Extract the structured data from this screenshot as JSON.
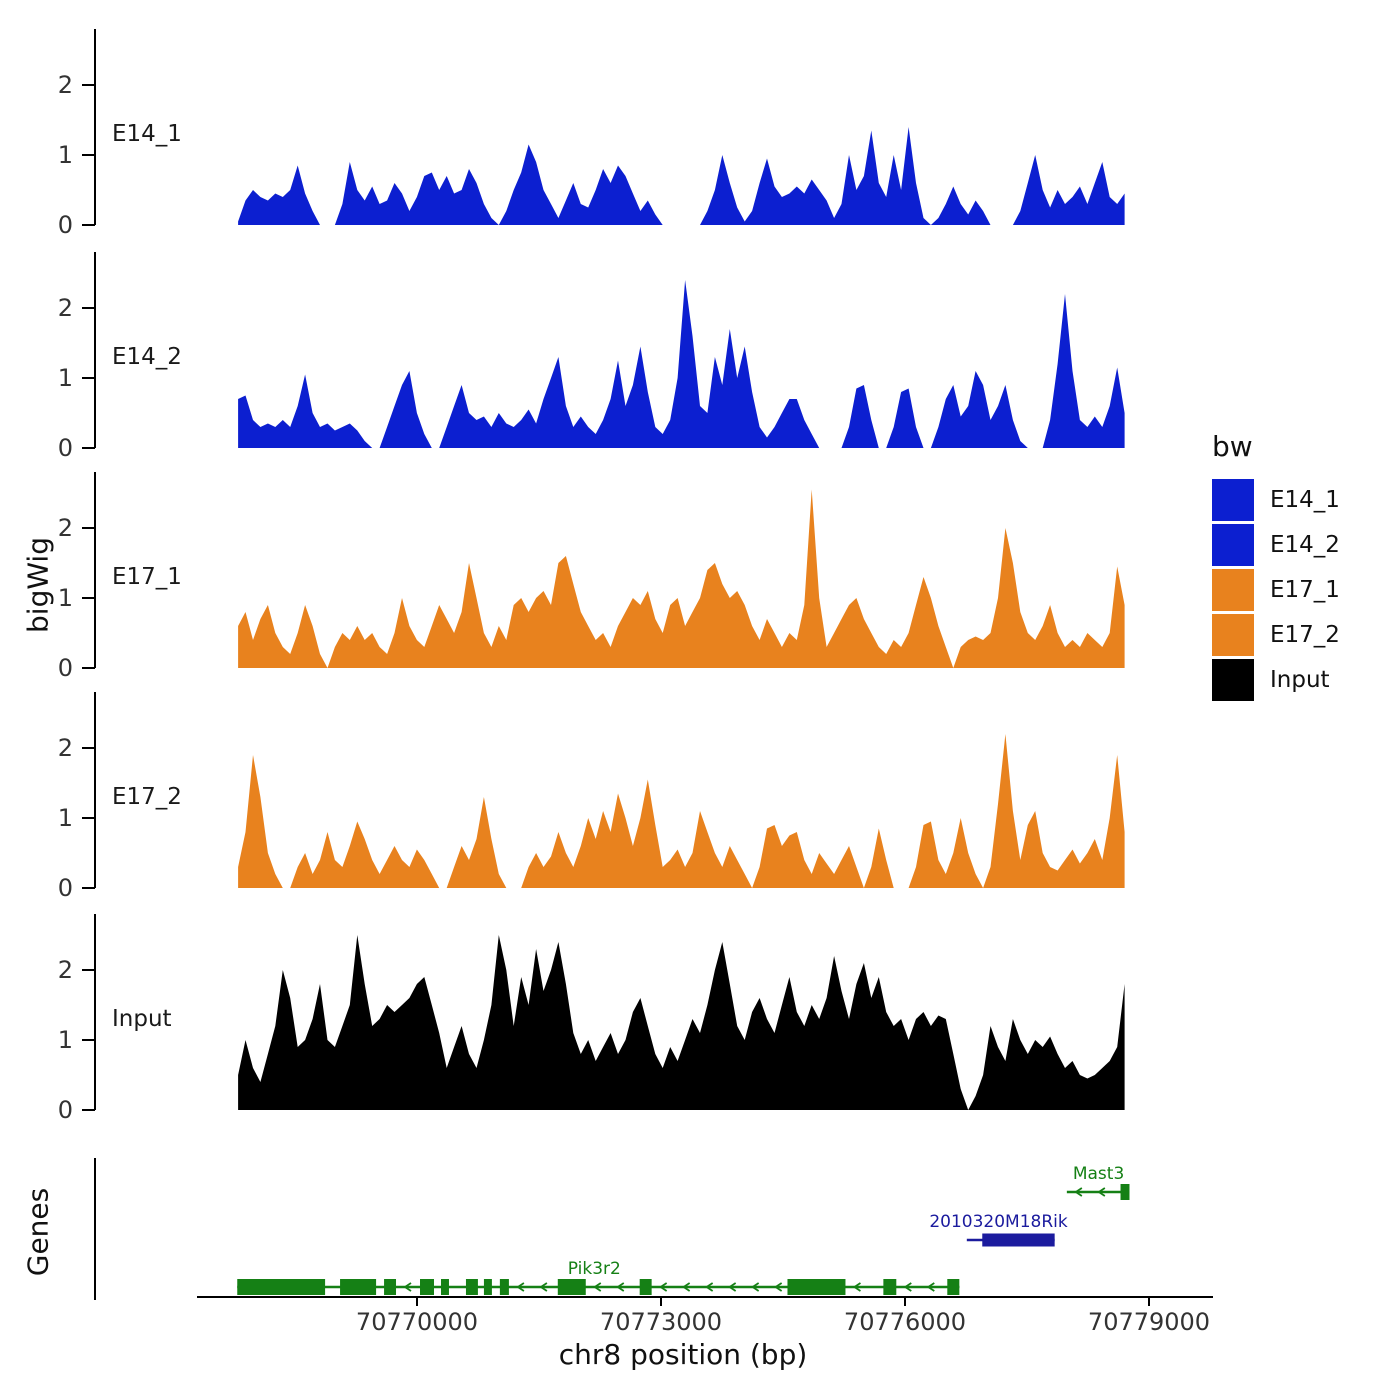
{
  "labels": {
    "y_axis": "bigWig",
    "genes_axis": "Genes",
    "x_axis": "chr8 position (bp)"
  },
  "legend": {
    "title": "bw",
    "items": [
      {
        "label": "E14_1",
        "color": "#0c1fd0"
      },
      {
        "label": "E14_2",
        "color": "#0c1fd0"
      },
      {
        "label": "E17_1",
        "color": "#e8821e"
      },
      {
        "label": "E17_2",
        "color": "#e8821e"
      },
      {
        "label": "Input",
        "color": "#000000"
      }
    ]
  },
  "colors": {
    "blue": "#0c1fd0",
    "orange": "#e8821e",
    "black": "#000000",
    "green": "#158015",
    "navy": "#1b1b9e"
  },
  "chart_data": {
    "type": "area",
    "title": "",
    "xlabel": "chr8 position (bp)",
    "ylabel": "bigWig",
    "chromosome": "chr8",
    "x_range_bp": [
      70767800,
      70778700
    ],
    "x_ticks": [
      70770000,
      70773000,
      70776000,
      70779000
    ],
    "x_tick_labels": [
      "70770000",
      "70773000",
      "70776000",
      "70779000"
    ],
    "y_ticks": [
      0,
      1,
      2
    ],
    "y_tick_labels": [
      "0",
      "1",
      "2"
    ],
    "legend_position": "right",
    "grid": false,
    "tracks": [
      {
        "name": "E14_1",
        "color": "#0c1fd0",
        "values": [
          0.05,
          0.35,
          0.5,
          0.4,
          0.35,
          0.45,
          0.4,
          0.5,
          0.85,
          0.45,
          0.2,
          0,
          0,
          0,
          0.3,
          0.9,
          0.5,
          0.35,
          0.55,
          0.3,
          0.35,
          0.6,
          0.45,
          0.2,
          0.4,
          0.7,
          0.75,
          0.5,
          0.7,
          0.45,
          0.5,
          0.8,
          0.6,
          0.3,
          0.1,
          0,
          0.2,
          0.5,
          0.75,
          1.15,
          0.9,
          0.5,
          0.3,
          0.1,
          0.35,
          0.6,
          0.3,
          0.25,
          0.5,
          0.8,
          0.6,
          0.85,
          0.7,
          0.45,
          0.2,
          0.35,
          0.15,
          0,
          0,
          0,
          0,
          0,
          0,
          0.2,
          0.5,
          1.0,
          0.6,
          0.25,
          0.05,
          0.2,
          0.6,
          0.95,
          0.55,
          0.4,
          0.45,
          0.55,
          0.45,
          0.65,
          0.5,
          0.35,
          0.1,
          0.3,
          1.0,
          0.5,
          0.7,
          1.35,
          0.6,
          0.4,
          1.0,
          0.5,
          1.4,
          0.6,
          0.1,
          0,
          0.1,
          0.3,
          0.55,
          0.3,
          0.15,
          0.35,
          0.2,
          0,
          0,
          0,
          0,
          0.2,
          0.6,
          1.0,
          0.5,
          0.25,
          0.5,
          0.3,
          0.4,
          0.55,
          0.3,
          0.6,
          0.9,
          0.4,
          0.3,
          0.45
        ]
      },
      {
        "name": "E14_2",
        "color": "#0c1fd0",
        "values": [
          0.7,
          0.75,
          0.4,
          0.3,
          0.35,
          0.3,
          0.4,
          0.3,
          0.6,
          1.05,
          0.5,
          0.3,
          0.35,
          0.25,
          0.3,
          0.35,
          0.25,
          0.1,
          0,
          0,
          0.3,
          0.6,
          0.9,
          1.1,
          0.5,
          0.2,
          0,
          0,
          0.3,
          0.6,
          0.9,
          0.5,
          0.4,
          0.45,
          0.3,
          0.5,
          0.35,
          0.3,
          0.4,
          0.55,
          0.35,
          0.7,
          1.0,
          1.3,
          0.6,
          0.3,
          0.45,
          0.3,
          0.2,
          0.4,
          0.7,
          1.25,
          0.6,
          0.9,
          1.45,
          0.8,
          0.3,
          0.2,
          0.4,
          1.0,
          2.4,
          1.6,
          0.6,
          0.5,
          1.3,
          0.9,
          1.7,
          1.0,
          1.45,
          0.8,
          0.3,
          0.15,
          0.3,
          0.5,
          0.7,
          0.7,
          0.4,
          0.2,
          0,
          0,
          0,
          0,
          0.3,
          0.85,
          0.9,
          0.4,
          0,
          0,
          0.3,
          0.8,
          0.85,
          0.3,
          0,
          0,
          0.3,
          0.7,
          0.9,
          0.45,
          0.6,
          1.1,
          0.9,
          0.4,
          0.6,
          0.9,
          0.4,
          0.1,
          0,
          0,
          0,
          0.4,
          1.2,
          2.2,
          1.1,
          0.4,
          0.3,
          0.45,
          0.3,
          0.6,
          1.15,
          0.5
        ]
      },
      {
        "name": "E17_1",
        "color": "#e8821e",
        "values": [
          0.6,
          0.8,
          0.4,
          0.7,
          0.9,
          0.5,
          0.3,
          0.2,
          0.5,
          0.9,
          0.6,
          0.2,
          0,
          0.3,
          0.5,
          0.4,
          0.6,
          0.4,
          0.5,
          0.3,
          0.2,
          0.5,
          1.0,
          0.6,
          0.4,
          0.3,
          0.6,
          0.9,
          0.7,
          0.5,
          0.8,
          1.5,
          1.0,
          0.5,
          0.3,
          0.6,
          0.4,
          0.9,
          1.0,
          0.8,
          1.0,
          1.1,
          0.9,
          1.5,
          1.6,
          1.2,
          0.8,
          0.6,
          0.4,
          0.5,
          0.3,
          0.6,
          0.8,
          1.0,
          0.9,
          1.1,
          0.7,
          0.5,
          0.9,
          1.0,
          0.6,
          0.8,
          1.0,
          1.4,
          1.5,
          1.2,
          1.0,
          1.1,
          0.9,
          0.6,
          0.4,
          0.7,
          0.5,
          0.3,
          0.5,
          0.4,
          0.9,
          2.55,
          1.0,
          0.3,
          0.5,
          0.7,
          0.9,
          1.0,
          0.7,
          0.5,
          0.3,
          0.2,
          0.4,
          0.3,
          0.5,
          0.9,
          1.3,
          1.0,
          0.6,
          0.3,
          0,
          0.3,
          0.4,
          0.45,
          0.4,
          0.5,
          1.0,
          2.0,
          1.5,
          0.8,
          0.5,
          0.4,
          0.6,
          0.9,
          0.5,
          0.3,
          0.4,
          0.3,
          0.5,
          0.4,
          0.3,
          0.5,
          1.45,
          0.9
        ]
      },
      {
        "name": "E17_2",
        "color": "#e8821e",
        "values": [
          0.3,
          0.8,
          1.9,
          1.3,
          0.5,
          0.2,
          0,
          0,
          0.3,
          0.5,
          0.2,
          0.4,
          0.8,
          0.4,
          0.3,
          0.6,
          0.95,
          0.7,
          0.4,
          0.2,
          0.4,
          0.6,
          0.4,
          0.3,
          0.55,
          0.4,
          0.2,
          0,
          0,
          0.3,
          0.6,
          0.4,
          0.7,
          1.3,
          0.7,
          0.2,
          0,
          0,
          0,
          0.3,
          0.5,
          0.3,
          0.45,
          0.8,
          0.5,
          0.3,
          0.6,
          1.0,
          0.7,
          1.1,
          0.8,
          1.35,
          1.0,
          0.6,
          1.0,
          1.55,
          0.9,
          0.3,
          0.4,
          0.55,
          0.3,
          0.5,
          1.1,
          0.8,
          0.5,
          0.3,
          0.6,
          0.4,
          0.2,
          0,
          0.3,
          0.85,
          0.9,
          0.6,
          0.75,
          0.8,
          0.4,
          0.2,
          0.5,
          0.35,
          0.2,
          0.4,
          0.6,
          0.3,
          0,
          0.3,
          0.85,
          0.4,
          0,
          0,
          0,
          0.3,
          0.9,
          0.95,
          0.4,
          0.2,
          0.5,
          1.0,
          0.5,
          0.2,
          0,
          0.3,
          1.2,
          2.2,
          1.1,
          0.4,
          0.9,
          1.1,
          0.5,
          0.3,
          0.25,
          0.4,
          0.55,
          0.35,
          0.5,
          0.7,
          0.4,
          1.0,
          1.9,
          0.8
        ]
      },
      {
        "name": "Input",
        "color": "#000000",
        "values": [
          0.5,
          1.0,
          0.6,
          0.4,
          0.8,
          1.2,
          2.0,
          1.6,
          0.9,
          1.0,
          1.3,
          1.8,
          1.0,
          0.9,
          1.2,
          1.5,
          2.5,
          1.8,
          1.2,
          1.3,
          1.5,
          1.4,
          1.5,
          1.6,
          1.8,
          1.9,
          1.5,
          1.1,
          0.6,
          0.9,
          1.2,
          0.8,
          0.6,
          1.0,
          1.5,
          2.5,
          2.0,
          1.2,
          1.9,
          1.5,
          2.3,
          1.7,
          2.0,
          2.4,
          1.8,
          1.1,
          0.8,
          1.0,
          0.7,
          0.9,
          1.1,
          0.8,
          1.0,
          1.4,
          1.6,
          1.2,
          0.8,
          0.6,
          0.9,
          0.7,
          1.0,
          1.3,
          1.1,
          1.5,
          2.0,
          2.4,
          1.8,
          1.2,
          1.0,
          1.4,
          1.6,
          1.3,
          1.1,
          1.5,
          1.9,
          1.4,
          1.2,
          1.5,
          1.3,
          1.6,
          2.2,
          1.7,
          1.3,
          1.8,
          2.1,
          1.6,
          1.9,
          1.4,
          1.2,
          1.3,
          1.0,
          1.3,
          1.4,
          1.2,
          1.35,
          1.3,
          0.8,
          0.3,
          0,
          0.2,
          0.5,
          1.2,
          0.9,
          0.7,
          1.3,
          1.0,
          0.8,
          1.0,
          0.9,
          1.05,
          0.8,
          0.6,
          0.7,
          0.5,
          0.45,
          0.5,
          0.6,
          0.7,
          0.9,
          1.8
        ]
      }
    ],
    "genes": [
      {
        "name": "Mast3",
        "strand": "-",
        "color_key": "green",
        "start": 70777990,
        "end": 70778760,
        "label_bp": 70778380,
        "exons": [
          [
            70778650,
            70778760
          ]
        ],
        "row": 0
      },
      {
        "name": "2010320M18Rik",
        "strand": "+",
        "color_key": "navy",
        "start": 70776760,
        "end": 70777840,
        "label_bp": 70777150,
        "exons": [
          [
            70776950,
            70777840
          ]
        ],
        "row": 1
      },
      {
        "name": "Pik3r2",
        "strand": "-",
        "color_key": "green",
        "start": 70767790,
        "end": 70776670,
        "label_bp": 70772180,
        "exons": [
          [
            70767790,
            70768870
          ],
          [
            70769054,
            70769497
          ],
          [
            70769595,
            70769742
          ],
          [
            70770037,
            70770209
          ],
          [
            70770295,
            70770393
          ],
          [
            70770602,
            70770749
          ],
          [
            70770823,
            70770921
          ],
          [
            70771019,
            70771130
          ],
          [
            70771731,
            70772075
          ],
          [
            70772738,
            70772885
          ],
          [
            70774555,
            70775268
          ],
          [
            70775734,
            70775893
          ],
          [
            70776520,
            70776668
          ]
        ],
        "row": 2
      }
    ]
  }
}
